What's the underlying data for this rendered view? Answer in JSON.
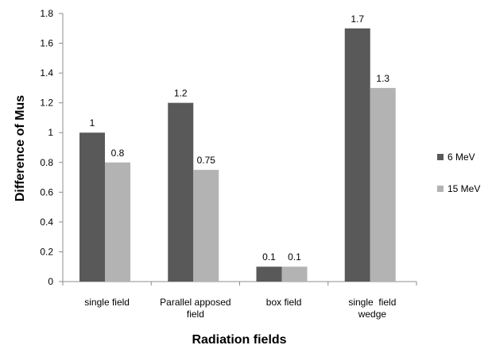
{
  "chart_data": {
    "type": "bar",
    "title": "",
    "xlabel": "Radiation fields",
    "ylabel": "Difference of Mus",
    "categories": [
      [
        "single field"
      ],
      [
        "Parallel apposed",
        "field"
      ],
      [
        "box field"
      ],
      [
        "single  field",
        "wedge"
      ]
    ],
    "series": [
      {
        "name": "6 MeV",
        "values": [
          1,
          1.2,
          0.1,
          1.7
        ],
        "labels": [
          "1",
          "1.2",
          "0.1",
          "1.7"
        ],
        "color": "#595959"
      },
      {
        "name": "15 MeV",
        "values": [
          0.8,
          0.75,
          0.1,
          1.3
        ],
        "labels": [
          "0.8",
          "0.75",
          "0.1",
          "1.3"
        ],
        "color": "#b3b3b3"
      }
    ],
    "ylim": [
      0,
      1.8
    ],
    "yticks": [
      "0",
      "0.2",
      "0.4",
      "0.6",
      "0.8",
      "1",
      "1.2",
      "1.4",
      "1.6",
      "1.8"
    ],
    "grid": false,
    "legend_position": "right"
  }
}
